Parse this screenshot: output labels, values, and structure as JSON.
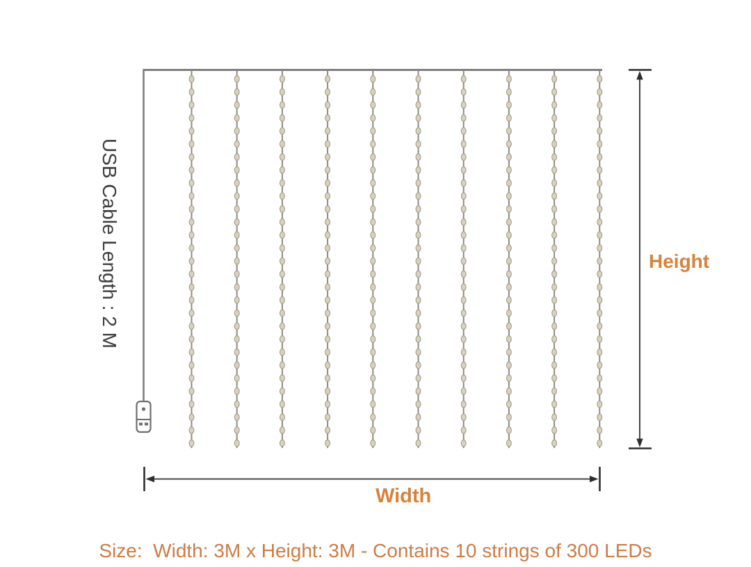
{
  "diagram": {
    "usb_cable_label": "USB Cable Length : 2 M",
    "height_label": "Height",
    "width_label": "Width",
    "strings_count": 10,
    "colors": {
      "frame_gray": "#7f7f7f",
      "string_gray": "#8b8b84",
      "bead_fill": "#d9d2c0",
      "bead_stroke": "#a59c85",
      "dimension_dark": "#2d2d2d",
      "plug_gray": "#6e6e6e",
      "accent_orange": "#d8823a",
      "caption_orange": "#cd7c45",
      "usb_label_dark": "#3d3d3d"
    }
  },
  "caption": {
    "size_text": "Size:  Width: 3M x Height: 3M - Contains 10 strings of 300 LEDs"
  }
}
